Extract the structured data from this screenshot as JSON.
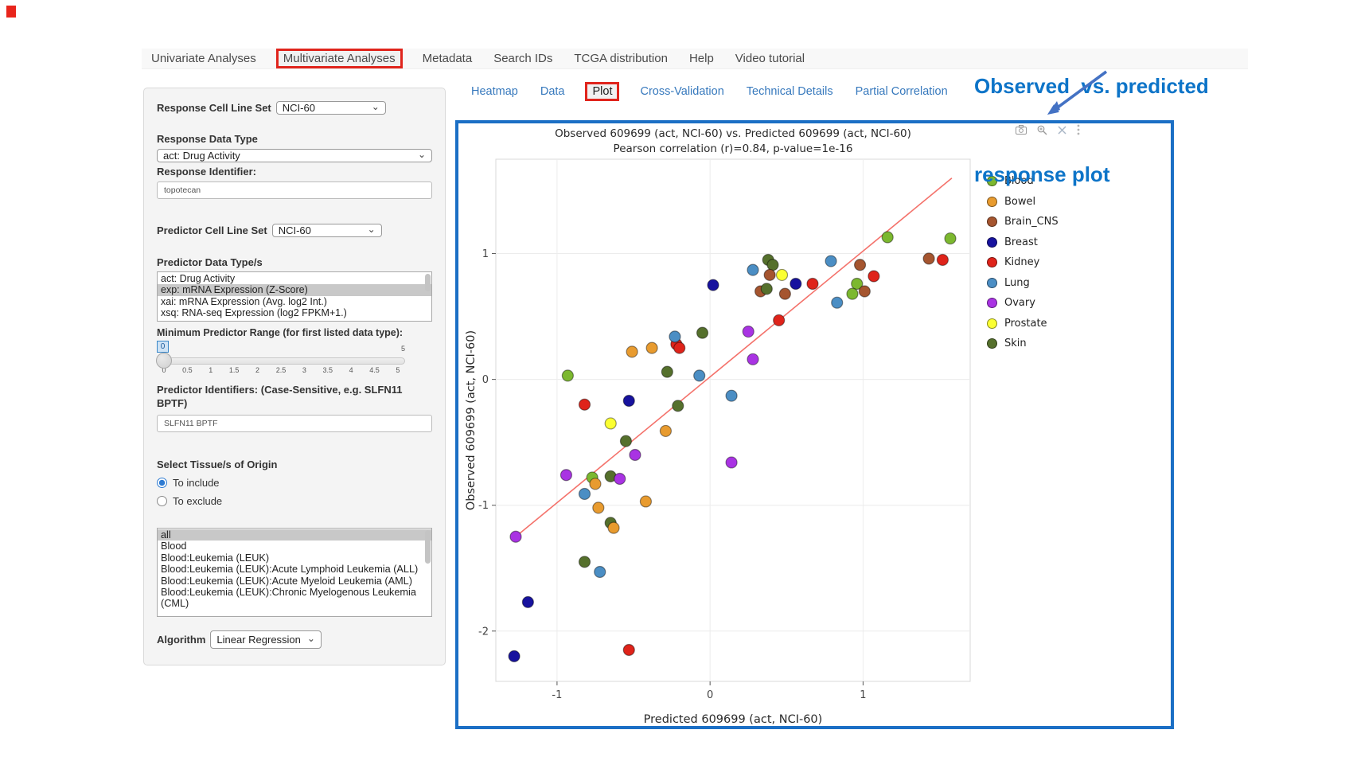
{
  "colors": {
    "highlight_red": "#e0241c",
    "box_blue": "#1b6fc5",
    "heading_blue": "#0d74c8",
    "arrow_blue": "#4472c4",
    "link_blue": "#3779bd",
    "list_selection_gray": "#c8c8c8",
    "regression_line": "#f4726b"
  },
  "navbar": {
    "items": [
      {
        "label": "Univariate Analyses",
        "boxed": false
      },
      {
        "label": "Multivariate Analyses",
        "boxed": true
      },
      {
        "label": "Metadata",
        "boxed": false
      },
      {
        "label": "Search IDs",
        "boxed": false
      },
      {
        "label": "TCGA distribution",
        "boxed": false
      },
      {
        "label": "Help",
        "boxed": false
      },
      {
        "label": "Video tutorial",
        "boxed": false
      }
    ]
  },
  "sidebar": {
    "response_cell_line_set": {
      "label": "Response Cell Line Set",
      "value": "NCI-60"
    },
    "response_data_type": {
      "label": "Response Data Type",
      "value": "act: Drug Activity"
    },
    "response_identifier": {
      "label": "Response Identifier:",
      "value": "topotecan"
    },
    "predictor_cell_line_set": {
      "label": "Predictor Cell Line Set",
      "value": "NCI-60"
    },
    "predictor_data_types": {
      "label": "Predictor Data Type/s",
      "options": [
        "act: Drug Activity",
        "exp: mRNA Expression (Z-Score)",
        "xai: mRNA Expression (Avg. log2 Int.)",
        "xsq: RNA-seq Expression (log2 FPKM+1.)"
      ],
      "selected": "exp: mRNA Expression (Z-Score)"
    },
    "min_predictor_range": {
      "label": "Minimum Predictor Range (for first listed data type):",
      "value": "0",
      "max_label": "5",
      "ticks": [
        "0",
        "0.5",
        "1",
        "1.5",
        "2",
        "2.5",
        "3",
        "3.5",
        "4",
        "4.5",
        "5"
      ]
    },
    "predictor_identifiers": {
      "label": "Predictor Identifiers: (Case-Sensitive, e.g. SLFN11 BPTF)",
      "value": "SLFN11 BPTF"
    },
    "tissue_origin": {
      "label": "Select Tissue/s of Origin",
      "options": [
        {
          "label": "To include",
          "checked": true
        },
        {
          "label": "To exclude",
          "checked": false
        }
      ]
    },
    "tissue_list": {
      "options": [
        "all",
        "Blood",
        "Blood:Leukemia (LEUK)",
        "Blood:Leukemia (LEUK):Acute Lymphoid Leukemia (ALL)",
        "Blood:Leukemia (LEUK):Acute Myeloid Leukemia (AML)",
        "Blood:Leukemia (LEUK):Chronic Myelogenous Leukemia (CML)"
      ],
      "selected": "all"
    },
    "algorithm": {
      "label": "Algorithm",
      "value": "Linear Regression"
    }
  },
  "tabs": {
    "items": [
      {
        "label": "Heatmap",
        "active": false,
        "boxed": false
      },
      {
        "label": "Data",
        "active": false,
        "boxed": false
      },
      {
        "label": "Plot",
        "active": true,
        "boxed": true
      },
      {
        "label": "Cross-Validation",
        "active": false,
        "boxed": false
      },
      {
        "label": "Technical Details",
        "active": false,
        "boxed": false
      },
      {
        "label": "Partial Correlation",
        "active": false,
        "boxed": false
      }
    ]
  },
  "toolbar": {
    "icons": [
      {
        "name": "camera-icon"
      },
      {
        "name": "zoom-icon"
      },
      {
        "name": "close-icon"
      },
      {
        "name": "more-icon"
      }
    ]
  },
  "annotation": {
    "heading_line1": "Observed  vs. predicted",
    "heading_line2": "response plot"
  },
  "chart_data": {
    "type": "scatter",
    "title": "Observed 609699 (act, NCI-60) vs. Predicted 609699 (act, NCI-60)",
    "subtitle": "Pearson correlation (r)=0.84, p-value=1e-16",
    "xlabel": "Predicted 609699 (act, NCI-60)",
    "ylabel": "Observed 609699 (act, NCI-60)",
    "xlim": [
      -1.4,
      1.7
    ],
    "ylim": [
      -2.4,
      1.75
    ],
    "xticks": [
      -1,
      0,
      1
    ],
    "yticks": [
      -2,
      -1,
      0,
      1
    ],
    "grid": true,
    "legend_position": "right",
    "regression_line": {
      "x1": -1.28,
      "y1": -1.26,
      "x2": 1.58,
      "y2": 1.6,
      "color": "#f4726b"
    },
    "groups": [
      {
        "name": "Blood",
        "color": "#7cb82f"
      },
      {
        "name": "Bowel",
        "color": "#e89b2f"
      },
      {
        "name": "Brain_CNS",
        "color": "#a5552f"
      },
      {
        "name": "Breast",
        "color": "#17129e"
      },
      {
        "name": "Kidney",
        "color": "#df231a"
      },
      {
        "name": "Lung",
        "color": "#4b8ec4"
      },
      {
        "name": "Ovary",
        "color": "#a933e3"
      },
      {
        "name": "Prostate",
        "color": "#fbff32"
      },
      {
        "name": "Skin",
        "color": "#55702c"
      }
    ],
    "points": [
      {
        "x": 0.38,
        "y": 0.95,
        "g": "Skin"
      },
      {
        "x": 0.41,
        "y": 0.91,
        "g": "Skin"
      },
      {
        "x": 0.28,
        "y": 0.87,
        "g": "Lung"
      },
      {
        "x": 0.39,
        "y": 0.83,
        "g": "Brain_CNS"
      },
      {
        "x": 0.47,
        "y": 0.83,
        "g": "Prostate"
      },
      {
        "x": 0.02,
        "y": 0.75,
        "g": "Breast"
      },
      {
        "x": 0.56,
        "y": 0.76,
        "g": "Breast"
      },
      {
        "x": 0.67,
        "y": 0.76,
        "g": "Kidney"
      },
      {
        "x": 0.79,
        "y": 0.94,
        "g": "Lung"
      },
      {
        "x": 0.98,
        "y": 0.91,
        "g": "Brain_CNS"
      },
      {
        "x": 1.07,
        "y": 0.82,
        "g": "Kidney"
      },
      {
        "x": 1.16,
        "y": 1.13,
        "g": "Blood"
      },
      {
        "x": 0.33,
        "y": 0.7,
        "g": "Brain_CNS"
      },
      {
        "x": 0.37,
        "y": 0.72,
        "g": "Skin"
      },
      {
        "x": 0.49,
        "y": 0.68,
        "g": "Brain_CNS"
      },
      {
        "x": 0.96,
        "y": 0.76,
        "g": "Blood"
      },
      {
        "x": 1.01,
        "y": 0.7,
        "g": "Brain_CNS"
      },
      {
        "x": 0.93,
        "y": 0.68,
        "g": "Blood"
      },
      {
        "x": 0.83,
        "y": 0.61,
        "g": "Lung"
      },
      {
        "x": 0.45,
        "y": 0.47,
        "g": "Kidney"
      },
      {
        "x": 0.25,
        "y": 0.38,
        "g": "Ovary"
      },
      {
        "x": 1.43,
        "y": 0.96,
        "g": "Brain_CNS"
      },
      {
        "x": 1.52,
        "y": 0.95,
        "g": "Kidney"
      },
      {
        "x": 1.57,
        "y": 1.12,
        "g": "Blood"
      },
      {
        "x": -0.93,
        "y": 0.03,
        "g": "Blood"
      },
      {
        "x": -0.51,
        "y": 0.22,
        "g": "Bowel"
      },
      {
        "x": -0.38,
        "y": 0.25,
        "g": "Bowel"
      },
      {
        "x": -0.22,
        "y": 0.28,
        "g": "Kidney"
      },
      {
        "x": -0.2,
        "y": 0.25,
        "g": "Kidney"
      },
      {
        "x": -0.23,
        "y": 0.34,
        "g": "Lung"
      },
      {
        "x": -0.05,
        "y": 0.37,
        "g": "Skin"
      },
      {
        "x": -0.28,
        "y": 0.06,
        "g": "Skin"
      },
      {
        "x": -0.07,
        "y": 0.03,
        "g": "Lung"
      },
      {
        "x": 0.14,
        "y": -0.13,
        "g": "Lung"
      },
      {
        "x": -0.53,
        "y": -0.17,
        "g": "Breast"
      },
      {
        "x": -0.82,
        "y": -0.2,
        "g": "Kidney"
      },
      {
        "x": -0.21,
        "y": -0.21,
        "g": "Skin"
      },
      {
        "x": -0.65,
        "y": -0.35,
        "g": "Prostate"
      },
      {
        "x": -0.29,
        "y": -0.41,
        "g": "Bowel"
      },
      {
        "x": -0.55,
        "y": -0.49,
        "g": "Skin"
      },
      {
        "x": 0.28,
        "y": 0.16,
        "g": "Ovary"
      },
      {
        "x": 0.14,
        "y": -0.66,
        "g": "Ovary"
      },
      {
        "x": -0.49,
        "y": -0.6,
        "g": "Ovary"
      },
      {
        "x": -0.94,
        "y": -0.76,
        "g": "Ovary"
      },
      {
        "x": -0.77,
        "y": -0.78,
        "g": "Blood"
      },
      {
        "x": -0.75,
        "y": -0.83,
        "g": "Bowel"
      },
      {
        "x": -0.82,
        "y": -0.91,
        "g": "Lung"
      },
      {
        "x": -0.65,
        "y": -0.77,
        "g": "Skin"
      },
      {
        "x": -0.59,
        "y": -0.79,
        "g": "Ovary"
      },
      {
        "x": -0.73,
        "y": -1.02,
        "g": "Bowel"
      },
      {
        "x": -0.42,
        "y": -0.97,
        "g": "Bowel"
      },
      {
        "x": -0.65,
        "y": -1.14,
        "g": "Skin"
      },
      {
        "x": -0.63,
        "y": -1.18,
        "g": "Bowel"
      },
      {
        "x": -1.27,
        "y": -1.25,
        "g": "Ovary"
      },
      {
        "x": -0.82,
        "y": -1.45,
        "g": "Skin"
      },
      {
        "x": -0.72,
        "y": -1.53,
        "g": "Lung"
      },
      {
        "x": -1.19,
        "y": -1.77,
        "g": "Breast"
      },
      {
        "x": -1.28,
        "y": -2.2,
        "g": "Breast"
      },
      {
        "x": -0.53,
        "y": -2.15,
        "g": "Kidney"
      }
    ]
  }
}
